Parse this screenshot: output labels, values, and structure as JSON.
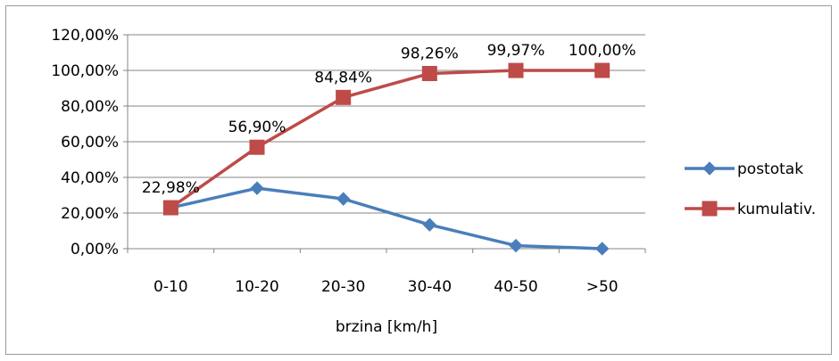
{
  "chart_data": {
    "type": "line",
    "title": "",
    "xlabel": "brzina [km/h]",
    "ylabel": "",
    "categories": [
      "0-10",
      "10-20",
      "20-30",
      "30-40",
      "40-50",
      ">50"
    ],
    "ylim": [
      0,
      120
    ],
    "y_ticks": [
      "0,00%",
      "20,00%",
      "40,00%",
      "60,00%",
      "80,00%",
      "100,00%",
      "120,00%"
    ],
    "grid": true,
    "legend_position": "right",
    "series": [
      {
        "name": "postotak",
        "values": [
          22.98,
          33.92,
          27.94,
          13.42,
          1.71,
          0.03
        ],
        "color": "#4a7ebb",
        "marker": "diamond",
        "labels": []
      },
      {
        "name": "kumulativ.",
        "values": [
          22.98,
          56.9,
          84.84,
          98.26,
          99.97,
          100.0
        ],
        "color": "#be4b48",
        "marker": "square",
        "labels": [
          "22,98%",
          "56,90%",
          "84,84%",
          "98,26%",
          "99,97%",
          "100,00%"
        ]
      }
    ]
  }
}
